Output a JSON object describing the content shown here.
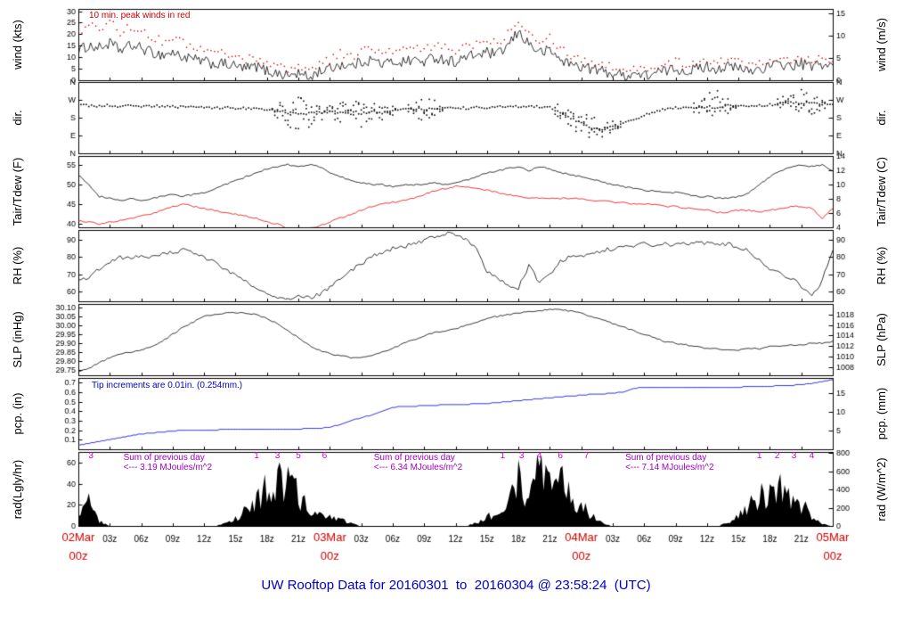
{
  "title": "UW Rooftop Data for 20160301  to  20160304 @ 23:58:24  (UTC)",
  "colors": {
    "frame": "#000000",
    "red": "#cc0000",
    "blue": "#0000cc",
    "magenta": "#cc00cc",
    "purple": "#a000c0",
    "title": "#0000cc"
  },
  "chart_data": {
    "type": "multi-panel-timeseries",
    "x_axis": {
      "hours_total": 72,
      "minor_labels": [
        "03z",
        "06z",
        "09z",
        "12z",
        "15z",
        "18z",
        "21z"
      ],
      "major_labels": [
        {
          "hour": 0,
          "day": "02Mar",
          "time": "00z"
        },
        {
          "hour": 24,
          "day": "03Mar",
          "time": "00z"
        },
        {
          "hour": 48,
          "day": "04Mar",
          "time": "00z"
        },
        {
          "hour": 72,
          "day": "05Mar",
          "time": "00z"
        }
      ],
      "minor_color": "#000000",
      "major_color": "#cc0000"
    },
    "panels": [
      {
        "id": "wind",
        "type": "wind",
        "left_title": "wind (kts)",
        "right_title": "wind (m/s)",
        "ylim": [
          0,
          31
        ],
        "ticks_left": {
          "values": [
            0,
            5,
            10,
            15,
            20,
            25,
            30
          ],
          "labels": [
            "0",
            "5",
            "10",
            "15",
            "20",
            "25",
            "30"
          ]
        },
        "ticks_right": {
          "values": [
            0,
            9.72,
            19.44,
            29.16
          ],
          "labels": [
            "0",
            "5",
            "10",
            "15"
          ]
        },
        "annotation": "10 min. peak winds in red",
        "noise": 2.4,
        "color": "#000000",
        "peak_color": "#cc0000",
        "values": [
          13,
          15,
          14,
          16,
          13,
          15,
          14,
          12,
          11,
          12,
          10,
          9,
          8,
          7,
          7,
          6,
          5,
          6,
          4,
          3,
          2,
          3,
          1,
          4,
          5,
          7,
          6,
          8,
          9,
          7,
          8,
          8,
          9,
          8,
          10,
          9,
          8,
          10,
          11,
          12,
          11,
          15,
          21,
          16,
          12,
          13,
          9,
          7,
          6,
          5,
          4,
          3,
          2,
          3,
          2,
          3,
          4,
          5,
          4,
          5,
          6,
          5,
          6,
          5,
          4,
          5,
          6,
          7,
          6,
          7,
          6,
          7,
          6
        ],
        "peaks": [
          20,
          24,
          22,
          26,
          21,
          23,
          22,
          19,
          17,
          19,
          16,
          15,
          13,
          12,
          12,
          10,
          9,
          10,
          8,
          6,
          5,
          6,
          4,
          8,
          9,
          12,
          10,
          13,
          14,
          11,
          13,
          13,
          14,
          13,
          15,
          14,
          13,
          15,
          16,
          18,
          16,
          21,
          26,
          22,
          17,
          19,
          14,
          11,
          9,
          8,
          7,
          6,
          4,
          6,
          4,
          6,
          7,
          8,
          7,
          8,
          9,
          8,
          9,
          8,
          7,
          8,
          9,
          10,
          9,
          10,
          9,
          10,
          9
        ]
      },
      {
        "id": "dir",
        "type": "scatter",
        "left_title": "dir.",
        "right_title": "dir.",
        "ylim": [
          0,
          360
        ],
        "ticks_left": {
          "values": [
            0,
            90,
            180,
            270,
            360
          ],
          "labels": [
            "N",
            "E",
            "S",
            "W",
            "N"
          ]
        },
        "ticks_right": {
          "values": [
            0,
            90,
            180,
            270,
            360
          ],
          "labels": [
            "N",
            "E",
            "S",
            "W",
            "N"
          ]
        },
        "color": "#000000",
        "values": [
          245,
          240,
          238,
          242,
          236,
          240,
          235,
          238,
          240,
          236,
          232,
          235,
          230,
          228,
          232,
          226,
          228,
          224,
          220,
          215,
          205,
          195,
          200,
          205,
          210,
          205,
          215,
          200,
          210,
          205,
          215,
          220,
          225,
          222,
          228,
          225,
          230,
          228,
          232,
          230,
          235,
          232,
          238,
          240,
          236,
          230,
          210,
          180,
          150,
          130,
          120,
          135,
          150,
          170,
          190,
          210,
          225,
          230,
          228,
          232,
          235,
          230,
          240,
          238,
          242,
          240,
          245,
          250,
          255,
          250,
          255,
          252,
          250
        ],
        "spread": [
          12,
          12,
          10,
          12,
          10,
          12,
          10,
          12,
          12,
          10,
          12,
          10,
          12,
          10,
          12,
          10,
          14,
          12,
          16,
          40,
          70,
          90,
          70,
          50,
          45,
          60,
          40,
          70,
          50,
          40,
          30,
          20,
          40,
          60,
          40,
          25,
          15,
          15,
          12,
          12,
          12,
          12,
          12,
          12,
          14,
          20,
          40,
          60,
          70,
          60,
          40,
          30,
          25,
          20,
          18,
          15,
          12,
          12,
          14,
          30,
          80,
          90,
          50,
          20,
          15,
          15,
          20,
          30,
          60,
          90,
          70,
          30,
          20
        ]
      },
      {
        "id": "tair",
        "type": "lines",
        "left_title": "Tair/Tdew (F)",
        "right_title": "Tair/Tdew (C)",
        "ylim": [
          39.2,
          57.2
        ],
        "ticks_left": {
          "values": [
            40,
            45,
            50,
            55
          ],
          "labels": [
            "40",
            "45",
            "50",
            "55"
          ]
        },
        "ticks_right": {
          "values": [
            39.2,
            42.8,
            46.4,
            50,
            53.6,
            57.2
          ],
          "labels": [
            "4",
            "6",
            "8",
            "10",
            "12",
            "14"
          ]
        },
        "noise": 0.2,
        "series": [
          {
            "name": "Tair",
            "color": "#000000",
            "values": [
              52.5,
              50,
              47,
              46.5,
              46,
              46.5,
              46,
              46.5,
              47,
              47.5,
              47,
              47.5,
              48,
              49,
              50,
              51,
              52,
              53,
              54,
              54.5,
              55,
              54.5,
              55,
              54.5,
              53,
              52,
              51,
              50.5,
              50,
              50,
              49.5,
              50,
              50,
              50,
              50.5,
              50,
              50.5,
              51,
              52,
              53,
              53.5,
              54,
              54.5,
              53.5,
              54.5,
              54,
              53,
              52.5,
              52,
              51.5,
              50.5,
              50,
              49.5,
              49,
              48.5,
              48.5,
              48,
              48,
              47.5,
              47,
              47,
              46.5,
              46.5,
              47,
              48,
              50,
              52,
              53.5,
              54.5,
              55,
              54.5,
              55,
              53.5
            ]
          },
          {
            "name": "Tdew",
            "color": "#e00000",
            "values": [
              41,
              40.5,
              40,
              40.5,
              41,
              41.5,
              42,
              42.5,
              43.5,
              44.5,
              45,
              44.5,
              44,
              43.5,
              43,
              42.5,
              42,
              41.5,
              40.5,
              40,
              39,
              38.5,
              39,
              39.5,
              40.5,
              41.5,
              42.5,
              43.5,
              44.5,
              45,
              45.5,
              46,
              46.5,
              47.5,
              48.5,
              49,
              49.5,
              49.5,
              49,
              48.5,
              48,
              47.5,
              47,
              46.5,
              46.5,
              46.5,
              46.5,
              46.5,
              46.5,
              46,
              46,
              45.5,
              45.5,
              45,
              45,
              45,
              44.5,
              44.5,
              44,
              44,
              43.5,
              43,
              43,
              43.5,
              43.5,
              43,
              43.5,
              44,
              44.5,
              44.5,
              44,
              41.5,
              44
            ]
          }
        ]
      },
      {
        "id": "rh",
        "type": "line",
        "left_title": "RH (%)",
        "right_title": "RH (%)",
        "ylim": [
          54,
          96
        ],
        "ticks_left": {
          "values": [
            60,
            70,
            80,
            90
          ],
          "labels": [
            "60",
            "70",
            "80",
            "90"
          ]
        },
        "ticks_right": {
          "values": [
            60,
            70,
            80,
            90
          ],
          "labels": [
            "60",
            "70",
            "80",
            "90"
          ]
        },
        "noise": 1.2,
        "color": "#000000",
        "values": [
          66,
          68,
          73,
          77,
          80,
          79,
          81,
          80,
          82,
          83,
          84,
          82,
          80,
          77,
          73,
          70,
          66,
          62,
          59,
          57,
          56,
          57,
          56,
          58,
          62,
          67,
          72,
          76,
          80,
          83,
          85,
          86,
          88,
          90,
          92,
          94,
          93,
          91,
          85,
          72,
          68,
          63,
          62,
          75,
          65,
          70,
          78,
          80,
          81,
          82,
          84,
          85,
          86,
          87,
          88,
          87,
          88,
          87,
          88,
          89,
          88,
          87,
          88,
          86,
          84,
          78,
          73,
          70,
          68,
          63,
          57,
          66,
          85
        ]
      },
      {
        "id": "slp",
        "type": "line",
        "left_title": "SLP (inHg)",
        "right_title": "SLP (hPa)",
        "ylim": [
          29.72,
          30.12
        ],
        "ticks_left": {
          "values": [
            29.75,
            29.8,
            29.85,
            29.9,
            29.95,
            30.0,
            30.05,
            30.1
          ],
          "labels": [
            "29.75",
            "29.80",
            "29.85",
            "29.90",
            "29.95",
            "30.00",
            "30.05",
            "30.10"
          ]
        },
        "ticks_right": {
          "values": [
            29.766,
            29.825,
            29.884,
            29.943,
            30.002,
            30.061
          ],
          "labels": [
            "1008",
            "1010",
            "1012",
            "1014",
            "1016",
            "1018"
          ]
        },
        "noise": 0.004,
        "color": "#000000",
        "values": [
          29.74,
          29.76,
          29.79,
          29.82,
          29.84,
          29.85,
          29.86,
          29.88,
          29.91,
          29.95,
          29.99,
          30.02,
          30.05,
          30.06,
          30.07,
          30.07,
          30.07,
          30.06,
          30.04,
          30.01,
          29.97,
          29.93,
          29.89,
          29.86,
          29.84,
          29.83,
          29.82,
          29.82,
          29.83,
          29.85,
          29.87,
          29.9,
          29.92,
          29.94,
          29.96,
          29.97,
          29.98,
          30.0,
          30.02,
          30.04,
          30.05,
          30.06,
          30.07,
          30.08,
          30.08,
          30.09,
          30.09,
          30.08,
          30.07,
          30.05,
          30.03,
          30.01,
          29.99,
          29.97,
          29.95,
          29.93,
          29.91,
          29.9,
          29.89,
          29.88,
          29.87,
          29.87,
          29.86,
          29.86,
          29.87,
          29.87,
          29.88,
          29.88,
          29.89,
          29.89,
          29.9,
          29.9,
          29.91
        ]
      },
      {
        "id": "pcp",
        "type": "step",
        "left_title": "pcp. (in)",
        "right_title": "pcp. (mm)",
        "ylim": [
          0,
          0.75
        ],
        "ticks_left": {
          "values": [
            0.1,
            0.2,
            0.3,
            0.4,
            0.5,
            0.6,
            0.7
          ],
          "labels": [
            "0.1",
            "0.2",
            "0.3",
            "0.4",
            "0.5",
            "0.6",
            "0.7"
          ]
        },
        "ticks_right": {
          "values": [
            0.197,
            0.394,
            0.591
          ],
          "labels": [
            "5",
            "10",
            "15"
          ]
        },
        "annotation": "Tip increments are 0.01in. (0.254mm.)",
        "color": "#1a1acc",
        "values": [
          0.04,
          0.06,
          0.08,
          0.1,
          0.12,
          0.14,
          0.16,
          0.17,
          0.18,
          0.19,
          0.2,
          0.2,
          0.2,
          0.2,
          0.21,
          0.21,
          0.21,
          0.21,
          0.21,
          0.21,
          0.21,
          0.21,
          0.22,
          0.22,
          0.23,
          0.26,
          0.3,
          0.33,
          0.36,
          0.4,
          0.44,
          0.45,
          0.45,
          0.46,
          0.46,
          0.47,
          0.47,
          0.47,
          0.48,
          0.48,
          0.49,
          0.5,
          0.51,
          0.52,
          0.53,
          0.54,
          0.55,
          0.56,
          0.57,
          0.58,
          0.58,
          0.59,
          0.6,
          0.64,
          0.65,
          0.65,
          0.65,
          0.65,
          0.65,
          0.65,
          0.65,
          0.65,
          0.65,
          0.65,
          0.66,
          0.66,
          0.66,
          0.67,
          0.67,
          0.68,
          0.69,
          0.71,
          0.73
        ]
      },
      {
        "id": "rad",
        "type": "area",
        "left_title": "rad(Lgly/hr)",
        "right_title": "rad (W/m^2)",
        "ylim": [
          0,
          70
        ],
        "ticks_left": {
          "values": [
            0,
            20,
            40,
            60
          ],
          "labels": [
            "0",
            "20",
            "40",
            "60"
          ]
        },
        "ticks_right": {
          "values": [
            0,
            17.2,
            34.4,
            51.6,
            68.8
          ],
          "labels": [
            "0",
            "200",
            "400",
            "600",
            "800"
          ]
        },
        "color": "#000000",
        "values": [
          10,
          22,
          5,
          0,
          0,
          0,
          0,
          0,
          0,
          0,
          0,
          0,
          0,
          0,
          2,
          8,
          15,
          25,
          38,
          45,
          40,
          30,
          18,
          12,
          10,
          6,
          3,
          0,
          0,
          0,
          0,
          0,
          0,
          0,
          0,
          0,
          0,
          0,
          3,
          8,
          15,
          25,
          45,
          30,
          65,
          40,
          50,
          30,
          20,
          10,
          3,
          0,
          0,
          0,
          0,
          0,
          0,
          0,
          0,
          0,
          0,
          0,
          3,
          10,
          20,
          30,
          28,
          35,
          30,
          22,
          8,
          2,
          0
        ],
        "markers": [
          {
            "h": 1.2,
            "label": "3"
          },
          {
            "h": 17,
            "label": "1"
          },
          {
            "h": 19,
            "label": "3"
          },
          {
            "h": 21,
            "label": "5"
          },
          {
            "h": 23.5,
            "label": "6"
          },
          {
            "h": 40.5,
            "label": "1"
          },
          {
            "h": 42.3,
            "label": "3"
          },
          {
            "h": 44,
            "label": "4"
          },
          {
            "h": 46,
            "label": "6"
          },
          {
            "h": 48.5,
            "label": "7"
          },
          {
            "h": 65,
            "label": "1"
          },
          {
            "h": 66.7,
            "label": "2"
          },
          {
            "h": 68.3,
            "label": "3"
          },
          {
            "h": 70,
            "label": "4"
          }
        ],
        "sums": [
          {
            "h": 4.3,
            "line1": "Sum of previous day",
            "line2": "<--- 3.19 MJoules/m^2"
          },
          {
            "h": 28.2,
            "line1": "Sum of previous day",
            "line2": "<--- 6.34 MJoules/m^2"
          },
          {
            "h": 52.2,
            "line1": "Sum of previous day",
            "line2": "<--- 7.14 MJoules/m^2"
          }
        ]
      }
    ]
  }
}
